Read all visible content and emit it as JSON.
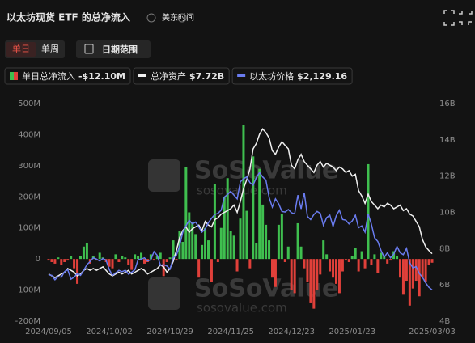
{
  "header": {
    "title": "以太坊现货 ETF 的总净流入",
    "timezone": "美东时间"
  },
  "controls": {
    "period": [
      "单日",
      "单周"
    ],
    "range": "日期范围"
  },
  "watermark": [
    "SoSoValue",
    "sosovalue.com"
  ],
  "chart_data": {
    "type": "bar",
    "categories": [
      "2024/09/05",
      null,
      null,
      null,
      null,
      null,
      null,
      null,
      null,
      null,
      null,
      null,
      null,
      null,
      null,
      null,
      null,
      null,
      null,
      "2024/10/02",
      null,
      null,
      null,
      null,
      null,
      null,
      null,
      null,
      null,
      null,
      null,
      null,
      null,
      null,
      null,
      null,
      null,
      null,
      "2024/10/29",
      null,
      null,
      null,
      null,
      null,
      null,
      null,
      null,
      null,
      null,
      null,
      null,
      null,
      null,
      null,
      null,
      null,
      null,
      "2024/11/25",
      null,
      null,
      null,
      null,
      null,
      null,
      null,
      null,
      null,
      null,
      null,
      null,
      null,
      null,
      null,
      null,
      null,
      null,
      "2024/12/23",
      null,
      null,
      null,
      null,
      null,
      null,
      null,
      null,
      null,
      null,
      null,
      null,
      null,
      null,
      null,
      null,
      null,
      null,
      "2025/01/23",
      null,
      null,
      null,
      null,
      null,
      null,
      null,
      null,
      null,
      null,
      null,
      null,
      null,
      null,
      null,
      null,
      null,
      null,
      null,
      null,
      null,
      null,
      null,
      null,
      "2025/03/03"
    ],
    "series": [
      {
        "name": "单日总净流入",
        "summary": "-$12.10M",
        "color": "#3fbf4f",
        "negative_color": "#e0403a",
        "values": [
          -5,
          -10,
          -15,
          5,
          -20,
          -10,
          -5,
          10,
          -30,
          -80,
          10,
          40,
          50,
          -15,
          10,
          -5,
          20,
          5,
          -10,
          -25,
          -30,
          15,
          -10,
          10,
          5,
          -20,
          -35,
          15,
          10,
          20,
          -15,
          -10,
          15,
          -5,
          10,
          20,
          -55,
          -10,
          5,
          60,
          -5,
          90,
          55,
          295,
          150,
          120,
          80,
          -60,
          45,
          100,
          60,
          -75,
          240,
          -10,
          100,
          200,
          260,
          90,
          75,
          -40,
          130,
          430,
          155,
          -30,
          330,
          50,
          290,
          175,
          110,
          60,
          -60,
          -90,
          110,
          145,
          -10,
          40,
          -100,
          -110,
          115,
          40,
          -30,
          -75,
          -140,
          -160,
          -100,
          -50,
          60,
          15,
          -40,
          -60,
          -80,
          -110,
          -40,
          -5,
          -10,
          10,
          35,
          -40,
          25,
          -30,
          305,
          -20,
          15,
          -45,
          20,
          10,
          -15,
          -5,
          25,
          10,
          -60,
          -115,
          -70,
          -150,
          -95,
          -70,
          -120,
          -60,
          -75,
          -20,
          -12.1
        ]
      },
      {
        "name": "总净资产",
        "summary": "$7.72B",
        "color": "#f0f0f0",
        "axis": "y2",
        "line": true,
        "values": [
          6.6,
          6.5,
          6.4,
          6.5,
          6.6,
          6.7,
          6.9,
          6.8,
          6.7,
          6.5,
          6.6,
          6.8,
          6.9,
          6.8,
          6.9,
          6.8,
          6.9,
          7.0,
          6.8,
          6.6,
          6.5,
          6.6,
          6.7,
          6.6,
          6.7,
          6.8,
          6.6,
          6.7,
          6.8,
          6.9,
          6.8,
          6.6,
          6.7,
          6.8,
          6.9,
          7.1,
          7.0,
          6.7,
          6.9,
          7.3,
          7.9,
          8.6,
          9.0,
          9.2,
          8.9,
          9.1,
          9.2,
          9.3,
          9.0,
          9.5,
          9.3,
          9.2,
          9.6,
          9.7,
          9.9,
          10.0,
          10.1,
          10.2,
          10.4,
          10.0,
          10.6,
          11.3,
          11.8,
          12.4,
          13.5,
          13.8,
          14.3,
          14.6,
          14.4,
          14.1,
          13.4,
          13.2,
          13.6,
          13.9,
          13.7,
          13.5,
          12.6,
          12.4,
          12.9,
          13.2,
          12.8,
          12.6,
          12.4,
          12.2,
          12.6,
          12.8,
          12.5,
          12.7,
          12.6,
          12.5,
          12.3,
          12.5,
          12.4,
          12.2,
          12.3,
          12.0,
          12.1,
          11.2,
          10.9,
          10.5,
          11.0,
          10.6,
          10.4,
          10.2,
          10.4,
          10.3,
          10.5,
          10.4,
          10.2,
          10.3,
          10.4,
          10.1,
          10.2,
          9.9,
          9.8,
          9.5,
          9.2,
          8.5,
          8.1,
          7.9,
          7.72
        ]
      },
      {
        "name": "以太坊价格",
        "summary": "$2,129.16",
        "color": "#6a7cf0",
        "axis": "y3",
        "line": true,
        "values": [
          2370,
          2360,
          2290,
          2340,
          2330,
          2420,
          2450,
          2300,
          2330,
          2390,
          2360,
          2440,
          2530,
          2580,
          2640,
          2620,
          2590,
          2630,
          2600,
          2450,
          2360,
          2400,
          2440,
          2420,
          2440,
          2380,
          2410,
          2450,
          2610,
          2620,
          2640,
          2590,
          2610,
          2740,
          2680,
          2520,
          2530,
          2510,
          2460,
          2640,
          2680,
          2830,
          3050,
          3150,
          3240,
          3180,
          3210,
          3130,
          3050,
          3100,
          3200,
          3270,
          3330,
          3350,
          3400,
          3610,
          3650,
          3700,
          3640,
          3580,
          3850,
          3900,
          3930,
          3840,
          3800,
          3920,
          4000,
          3930,
          3880,
          3600,
          3450,
          3580,
          3500,
          3380,
          3370,
          3410,
          3360,
          3340,
          3640,
          3420,
          3680,
          3300,
          3250,
          3330,
          3380,
          3350,
          3160,
          3280,
          3320,
          3140,
          3310,
          3400,
          3250,
          3240,
          3180,
          3230,
          3320,
          3120,
          3150,
          3050,
          3340,
          3180,
          2960,
          2900,
          2760,
          2650,
          2720,
          2640,
          2700,
          2820,
          2720,
          2690,
          2790,
          2560,
          2480,
          2500,
          2390,
          2330,
          2240,
          2170,
          2129.16
        ]
      }
    ],
    "ylim": [
      -200,
      500
    ],
    "yticks": [
      {
        "value": -200,
        "label": "-200M"
      },
      {
        "value": -100,
        "label": "-100M"
      },
      0,
      {
        "value": 100,
        "label": "100M"
      },
      {
        "value": 200,
        "label": "200M"
      },
      {
        "value": 300,
        "label": "300M"
      },
      {
        "value": 400,
        "label": "400M"
      },
      {
        "value": 500,
        "label": "500M"
      }
    ],
    "y2lim": [
      4,
      16
    ],
    "y2ticks": [
      {
        "value": 4,
        "label": "4B"
      },
      {
        "value": 6,
        "label": "6B"
      },
      {
        "value": 8,
        "label": "8B"
      },
      {
        "value": 10,
        "label": "10B"
      },
      {
        "value": 12,
        "label": "12B"
      },
      {
        "value": 14,
        "label": "14B"
      },
      {
        "value": 16,
        "label": "16B"
      }
    ],
    "y3lim": [
      1630,
      5100
    ],
    "grid": false
  }
}
